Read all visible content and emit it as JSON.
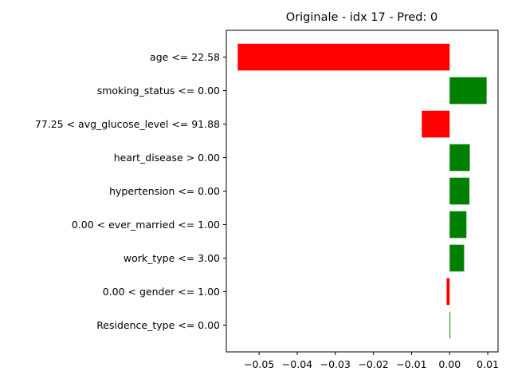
{
  "chart_data": {
    "type": "bar",
    "orientation": "horizontal",
    "title": "Originale - idx 17 - Pred: 0",
    "xlabel": "",
    "ylabel": "",
    "categories": [
      "age <= 22.58",
      "smoking_status <= 0.00",
      "77.25 < avg_glucose_level <= 91.88",
      "heart_disease > 0.00",
      "hypertension <= 0.00",
      "0.00 < ever_married <= 1.00",
      "work_type <= 3.00",
      "0.00 < gender <= 1.00",
      "Residence_type <= 0.00"
    ],
    "values": [
      -0.0556,
      0.0097,
      -0.0073,
      0.0053,
      0.0052,
      0.0044,
      0.0038,
      -0.0008,
      0.0002
    ],
    "xlim": [
      -0.0586,
      0.0127
    ],
    "xticks": [
      -0.05,
      -0.04,
      -0.03,
      -0.02,
      -0.01,
      0.0,
      0.01
    ],
    "xtick_labels": [
      "−0.05",
      "−0.04",
      "−0.03",
      "−0.02",
      "−0.01",
      "0.00",
      "0.01"
    ],
    "colors": {
      "positive": "#008000",
      "negative": "#ff0000"
    },
    "grid": false,
    "legend": "none"
  }
}
